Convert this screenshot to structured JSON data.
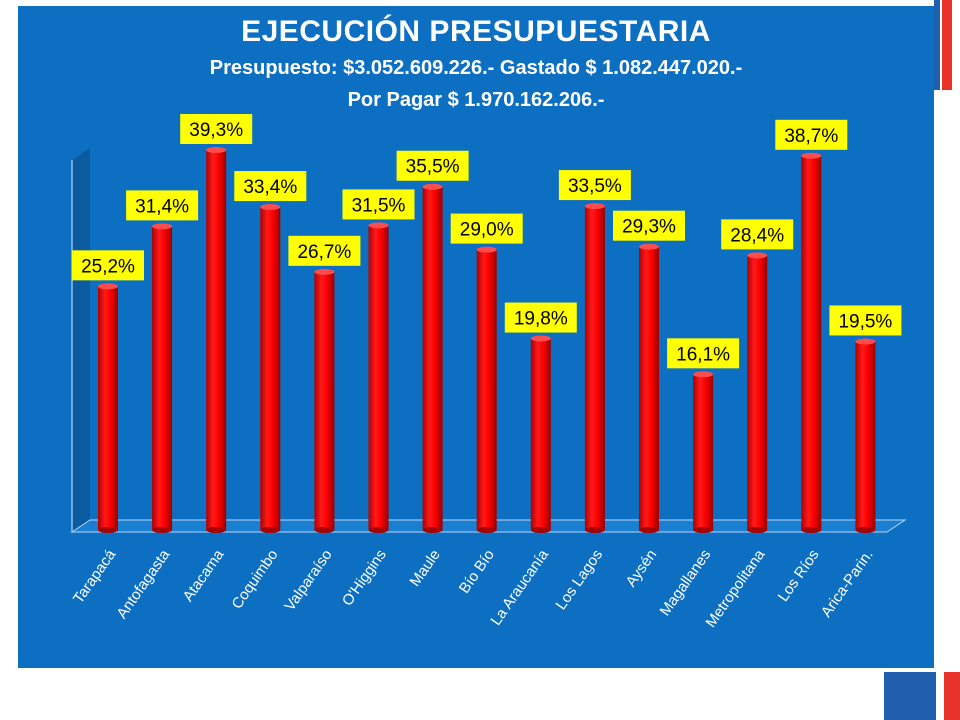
{
  "colors": {
    "panel": "#0d6fc1",
    "bar": "#ff0000",
    "bar_dark": "#a80000",
    "label_bg": "#ffff00",
    "text": "#ffffff",
    "accent_red": "#e8322a",
    "accent_blue": "#1f5fae"
  },
  "title": "EJECUCIÓN PRESUPUESTARIA",
  "subtitle_1": "Presupuesto: $3.052.609.226.- Gastado $ 1.082.447.020.-",
  "subtitle_2": "Por Pagar $ 1.970.162.206.-",
  "chart_data": {
    "type": "bar",
    "categories": [
      "Tarapacá",
      "Antofagasta",
      "Atacama",
      "Coquimbo",
      "Valparaíso",
      "O'Higgins",
      "Maule",
      "Bío Bío",
      "La Araucanía",
      "Los Lagos",
      "Aysén",
      "Magallanes",
      "Metropolitana",
      "Los Ríos",
      "Arica-Parin."
    ],
    "values": [
      25.2,
      31.4,
      39.3,
      33.4,
      26.7,
      31.5,
      35.5,
      29.0,
      19.8,
      33.5,
      29.3,
      16.1,
      28.4,
      38.7,
      19.5
    ],
    "data_labels": [
      "25,2%",
      "31,4%",
      "39,3%",
      "33,4%",
      "26,7%",
      "31,5%",
      "35,5%",
      "29,0%",
      "19,8%",
      "33,5%",
      "29,3%",
      "16,1%",
      "28,4%",
      "38,7%",
      "19,5%"
    ],
    "title": "EJECUCIÓN PRESUPUESTARIA",
    "xlabel": "",
    "ylabel": "",
    "ylim": [
      0,
      40
    ],
    "grid": false,
    "legend": "none"
  }
}
